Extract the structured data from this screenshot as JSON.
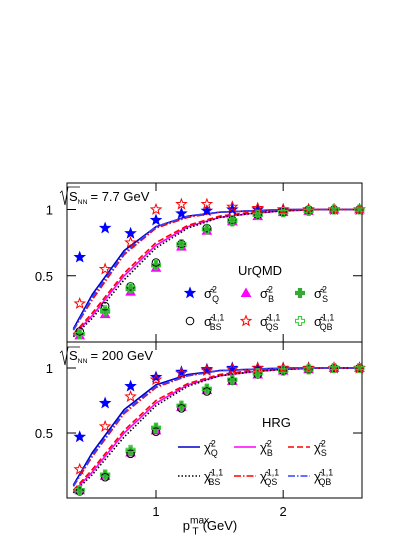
{
  "chart_data": [
    {
      "type": "scatter",
      "label": "UrQMD",
      "annotation": {
        "symbol": "S",
        "sub": "NN",
        "text": "= 7.7 GeV"
      },
      "x": [
        0.4,
        0.6,
        0.8,
        1.0,
        1.2,
        1.4,
        1.6,
        1.8,
        2.0,
        2.2,
        2.4,
        2.6
      ],
      "xlim": [
        0.3,
        2.62
      ],
      "ylim": [
        0,
        1.2
      ],
      "xticks": [
        1,
        2
      ],
      "yticks": [
        0.5,
        1
      ],
      "series": [
        {
          "symbol": "σ̂",
          "sup": "2",
          "sub": "Q",
          "marker": "star",
          "filled": true,
          "color": "#0000ff",
          "values": [
            0.64,
            0.86,
            0.82,
            0.92,
            0.97,
            0.99,
            1.0,
            1.0,
            1.0,
            1.0,
            1.0,
            1.0
          ]
        },
        {
          "symbol": "σ̂",
          "sup": "2",
          "sub": "B",
          "marker": "triangle",
          "filled": true,
          "color": "#ff00ff",
          "values": [
            0.05,
            0.21,
            0.38,
            0.56,
            0.72,
            0.84,
            0.91,
            0.95,
            0.98,
            0.99,
            1.0,
            1.0
          ]
        },
        {
          "symbol": "σ̂",
          "sup": "2",
          "sub": "S",
          "marker": "plus",
          "filled": true,
          "color": "#33aa33",
          "values": [
            0.06,
            0.23,
            0.4,
            0.58,
            0.73,
            0.85,
            0.91,
            0.96,
            0.98,
            0.99,
            1.0,
            1.0
          ]
        },
        {
          "symbol": "σ̂",
          "sup": "1,1",
          "sub": "BS",
          "marker": "circle",
          "filled": false,
          "color": "#000000",
          "values": [
            0.08,
            0.27,
            0.42,
            0.6,
            0.74,
            0.86,
            0.92,
            0.96,
            0.98,
            1.0,
            1.0,
            1.0
          ]
        },
        {
          "symbol": "σ̂",
          "sup": "1,1",
          "sub": "QS",
          "marker": "star",
          "filled": false,
          "color": "#ff0000",
          "values": [
            0.29,
            0.55,
            0.75,
            1.0,
            1.04,
            1.04,
            1.02,
            1.01,
            1.0,
            1.0,
            1.0,
            1.0
          ]
        },
        {
          "symbol": "σ̂",
          "sup": "1,1",
          "sub": "QB",
          "marker": "plus",
          "filled": false,
          "color": "#33cc33",
          "values": [
            0.06,
            0.24,
            0.41,
            0.58,
            0.74,
            0.85,
            0.92,
            0.96,
            0.98,
            0.99,
            1.0,
            1.0
          ]
        }
      ],
      "x_line": [
        0.35,
        0.5,
        0.75,
        1.0,
        1.25,
        1.5,
        1.75,
        2.0,
        2.3,
        2.6
      ],
      "lines": [
        {
          "symbol": "χ̂",
          "sup": "2",
          "sub": "Q",
          "dash": "solid",
          "color": "#0000cc",
          "values": [
            0.1,
            0.36,
            0.69,
            0.87,
            0.95,
            0.98,
            0.99,
            1.0,
            1.0,
            1.0
          ]
        },
        {
          "symbol": "χ̂",
          "sup": "2",
          "sub": "B",
          "dash": "solid",
          "color": "#ff00ff",
          "values": [
            0.05,
            0.2,
            0.5,
            0.73,
            0.87,
            0.94,
            0.97,
            0.99,
            1.0,
            1.0
          ]
        },
        {
          "symbol": "χ̂",
          "sup": "2",
          "sub": "S",
          "dash": "dashed",
          "color": "#ff0000",
          "values": [
            0.06,
            0.22,
            0.52,
            0.75,
            0.88,
            0.95,
            0.98,
            0.99,
            1.0,
            1.0
          ]
        },
        {
          "symbol": "χ̂",
          "sup": "1,1",
          "sub": "BS",
          "dash": "dotted",
          "color": "#000000",
          "values": [
            0.04,
            0.18,
            0.47,
            0.71,
            0.86,
            0.94,
            0.97,
            0.99,
            1.0,
            1.0
          ]
        },
        {
          "symbol": "χ̂",
          "sup": "1,1",
          "sub": "QS",
          "dash": "dashdot",
          "color": "#ff0000",
          "values": [
            0.09,
            0.32,
            0.66,
            0.86,
            0.94,
            0.98,
            0.99,
            1.0,
            1.0,
            1.0
          ]
        },
        {
          "symbol": "χ̂",
          "sup": "1,1",
          "sub": "QB",
          "dash": "dashdot",
          "color": "#3344ff",
          "values": [
            0.09,
            0.34,
            0.67,
            0.87,
            0.95,
            0.98,
            0.99,
            1.0,
            1.0,
            1.0
          ]
        }
      ],
      "legend": "markers"
    },
    {
      "type": "scatter",
      "label": "HRG",
      "annotation": {
        "symbol": "S",
        "sub": "NN",
        "text": "= 200 GeV"
      },
      "x": [
        0.4,
        0.6,
        0.8,
        1.0,
        1.2,
        1.4,
        1.6,
        1.8,
        2.0,
        2.2,
        2.4,
        2.6
      ],
      "xlim": [
        0.3,
        2.62
      ],
      "ylim": [
        0,
        1.2
      ],
      "xticks": [
        1,
        2
      ],
      "yticks": [
        0.5,
        1
      ],
      "xlabel": {
        "base": "p",
        "sup": "max",
        "sub": "T",
        "unit": "(GeV)"
      },
      "series": [
        {
          "color": "#0000ff",
          "marker": "star",
          "filled": true,
          "values": [
            0.47,
            0.73,
            0.86,
            0.93,
            0.97,
            0.99,
            1.0,
            1.0,
            1.0,
            1.0,
            1.0,
            1.0
          ]
        },
        {
          "color": "#ff00ff",
          "marker": "triangle",
          "filled": true,
          "values": [
            0.06,
            0.17,
            0.35,
            0.52,
            0.7,
            0.83,
            0.9,
            0.95,
            0.98,
            0.99,
            1.0,
            1.0
          ]
        },
        {
          "color": "#33aa33",
          "marker": "plus",
          "filled": true,
          "values": [
            0.06,
            0.18,
            0.36,
            0.54,
            0.71,
            0.84,
            0.91,
            0.96,
            0.98,
            0.99,
            1.0,
            1.0
          ]
        },
        {
          "color": "#000000",
          "marker": "circle",
          "filled": false,
          "values": [
            0.05,
            0.16,
            0.34,
            0.51,
            0.69,
            0.82,
            0.9,
            0.95,
            0.98,
            0.99,
            1.0,
            1.0
          ]
        },
        {
          "color": "#ff0000",
          "marker": "star",
          "filled": false,
          "values": [
            0.22,
            0.55,
            0.78,
            0.91,
            0.96,
            0.98,
            0.99,
            1.0,
            1.0,
            1.0,
            1.0,
            1.0
          ]
        },
        {
          "color": "#33cc33",
          "marker": "plus",
          "filled": false,
          "values": [
            0.06,
            0.18,
            0.37,
            0.54,
            0.71,
            0.84,
            0.91,
            0.96,
            0.98,
            0.99,
            1.0,
            1.0
          ]
        }
      ],
      "x_line": [
        0.35,
        0.5,
        0.75,
        1.0,
        1.25,
        1.5,
        1.75,
        2.0,
        2.3,
        2.6
      ],
      "lines": [
        {
          "symbol": "χ̂",
          "sup": "2",
          "sub": "Q",
          "dash": "solid",
          "color": "#0000cc",
          "values": [
            0.1,
            0.35,
            0.68,
            0.87,
            0.95,
            0.98,
            0.99,
            1.0,
            1.0,
            1.0
          ]
        },
        {
          "symbol": "χ̂",
          "sup": "2",
          "sub": "B",
          "dash": "solid",
          "color": "#ff00ff",
          "values": [
            0.05,
            0.2,
            0.5,
            0.73,
            0.87,
            0.94,
            0.97,
            0.99,
            1.0,
            1.0
          ]
        },
        {
          "symbol": "χ̂",
          "sup": "2",
          "sub": "S",
          "dash": "dashed",
          "color": "#ff0000",
          "values": [
            0.06,
            0.22,
            0.52,
            0.75,
            0.88,
            0.95,
            0.98,
            0.99,
            1.0,
            1.0
          ]
        },
        {
          "symbol": "χ̂",
          "sup": "1,1",
          "sub": "BS",
          "dash": "dotted",
          "color": "#000000",
          "values": [
            0.04,
            0.18,
            0.47,
            0.71,
            0.86,
            0.94,
            0.97,
            0.99,
            1.0,
            1.0
          ]
        },
        {
          "symbol": "χ̂",
          "sup": "1,1",
          "sub": "QS",
          "dash": "dashdot",
          "color": "#ff0000",
          "values": [
            0.09,
            0.32,
            0.65,
            0.85,
            0.94,
            0.98,
            0.99,
            1.0,
            1.0,
            1.0
          ]
        },
        {
          "symbol": "χ̂",
          "sup": "1,1",
          "sub": "QB",
          "dash": "dashdot",
          "color": "#3344ff",
          "values": [
            0.09,
            0.33,
            0.66,
            0.86,
            0.94,
            0.98,
            0.99,
            1.0,
            1.0,
            1.0
          ]
        }
      ],
      "legend": "lines"
    }
  ]
}
